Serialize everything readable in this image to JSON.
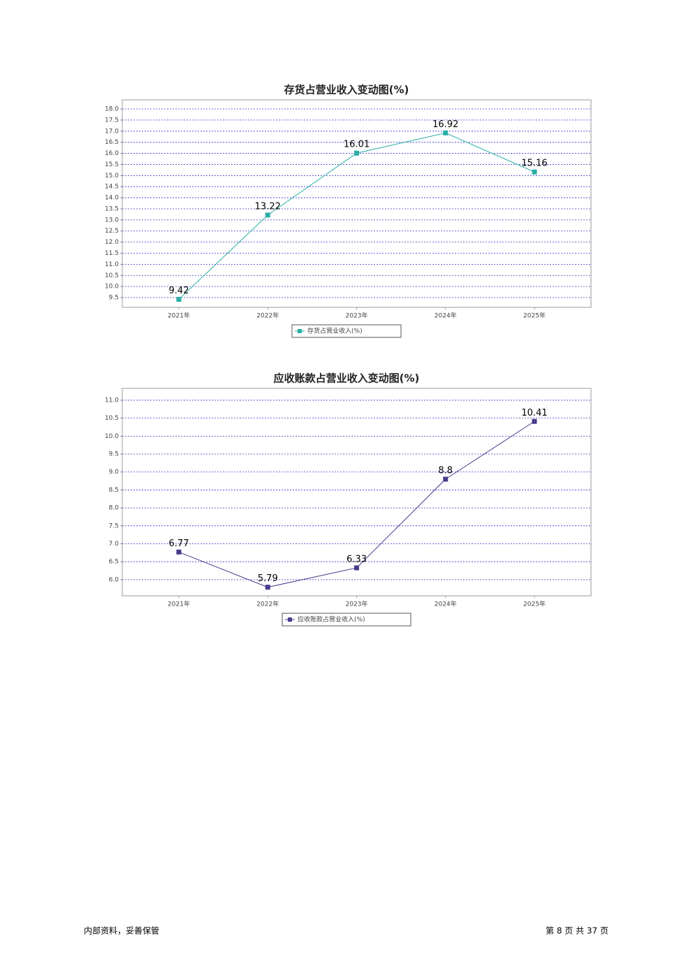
{
  "chart_data": [
    {
      "type": "line",
      "title": "存货占营业收入变动图(%)",
      "categories": [
        "2021年",
        "2022年",
        "2023年",
        "2024年",
        "2025年"
      ],
      "series": [
        {
          "name": "存货占营业收入(%)",
          "color": "#2aaea6",
          "values": [
            9.42,
            13.22,
            16.01,
            16.92,
            15.16
          ]
        }
      ],
      "ylim": [
        9.06,
        18.41
      ],
      "yticks": [
        9.5,
        {
          "value": 10,
          "label": "10.0"
        },
        10.5,
        {
          "value": 11,
          "label": "11.0"
        },
        11.5,
        {
          "value": 12,
          "label": "12.0"
        },
        12.5,
        {
          "value": 13,
          "label": "13.0"
        },
        13.5,
        {
          "value": 14,
          "label": "14.0"
        },
        14.5,
        {
          "value": 15,
          "label": "15.0"
        },
        15.5,
        {
          "value": 16,
          "label": "16.0"
        },
        16.5,
        {
          "value": 17,
          "label": "17.0"
        },
        17.5,
        {
          "value": 18,
          "label": "18.0"
        }
      ],
      "grid": true
    },
    {
      "type": "line",
      "title": "应收账款占营业收入变动图(%)",
      "categories": [
        "2021年",
        "2022年",
        "2023年",
        "2024年",
        "2025年"
      ],
      "series": [
        {
          "name": "应收账款占营业收入(%)",
          "color": "#463c8c",
          "values": [
            6.77,
            5.79,
            6.33,
            8.8,
            10.41
          ]
        }
      ],
      "ylim": [
        5.55,
        11.33
      ],
      "yticks": [
        {
          "value": 6,
          "label": "6.0"
        },
        6.5,
        {
          "value": 7,
          "label": "7.0"
        },
        7.5,
        {
          "value": 8,
          "label": "8.0"
        },
        8.5,
        {
          "value": 9,
          "label": "9.0"
        },
        9.5,
        {
          "value": 10,
          "label": "10.0"
        },
        10.5,
        {
          "value": 11,
          "label": "11.0"
        }
      ],
      "grid": true
    }
  ],
  "footer": {
    "left": "内部资料，妥善保管",
    "right": "第 8 页  共 37 页"
  }
}
